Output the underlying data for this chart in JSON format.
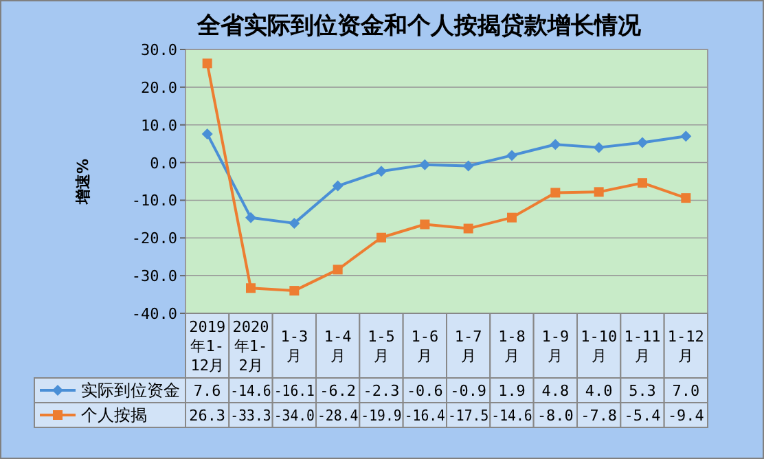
{
  "chart_data": {
    "type": "line",
    "title": "全省实际到位资金和个人按揭贷款增长情况",
    "ylabel": "增速%",
    "categories": [
      "2019年1-12月",
      "2020年1-2月",
      "1-3月",
      "1-4月",
      "1-5月",
      "1-6月",
      "1-7月",
      "1-8月",
      "1-9月",
      "1-10月",
      "1-11月",
      "1-12月"
    ],
    "series": [
      {
        "name": "实际到位资金",
        "color": "#4a8fd6",
        "marker": "diamond",
        "values": [
          7.6,
          -14.6,
          -16.1,
          -6.2,
          -2.3,
          -0.6,
          -0.9,
          1.9,
          4.8,
          4.0,
          5.3,
          7.0
        ],
        "value_labels": [
          "7.6",
          "-14.6",
          "-16.1",
          "-6.2",
          "-2.3",
          "-0.6",
          "-0.9",
          "1.9",
          "4.8",
          "4.0",
          "5.3",
          "7.0"
        ]
      },
      {
        "name": "个人按揭",
        "color": "#ed7d31",
        "marker": "square",
        "values": [
          26.3,
          -33.3,
          -34.0,
          -28.4,
          -19.9,
          -16.4,
          -17.5,
          -14.6,
          -8.0,
          -7.8,
          -5.4,
          -9.4
        ],
        "value_labels": [
          "26.3",
          "-33.3",
          "-34.0",
          "-28.4",
          "-19.9",
          "-16.4",
          "-17.5",
          "-14.6",
          "-8.0",
          "-7.8",
          "-5.4",
          "-9.4"
        ]
      }
    ],
    "ylim": [
      -40,
      30
    ],
    "yticks": [
      {
        "value": -40,
        "label": "-40.0"
      },
      {
        "value": -30,
        "label": "-30.0"
      },
      {
        "value": -20,
        "label": "-20.0"
      },
      {
        "value": -10,
        "label": "-10.0"
      },
      {
        "value": 0,
        "label": "0.0"
      },
      {
        "value": 10,
        "label": "10.0"
      },
      {
        "value": 20,
        "label": "20.0"
      },
      {
        "value": 30,
        "label": "30.0"
      }
    ],
    "grid": "y",
    "legend": "bottom"
  }
}
